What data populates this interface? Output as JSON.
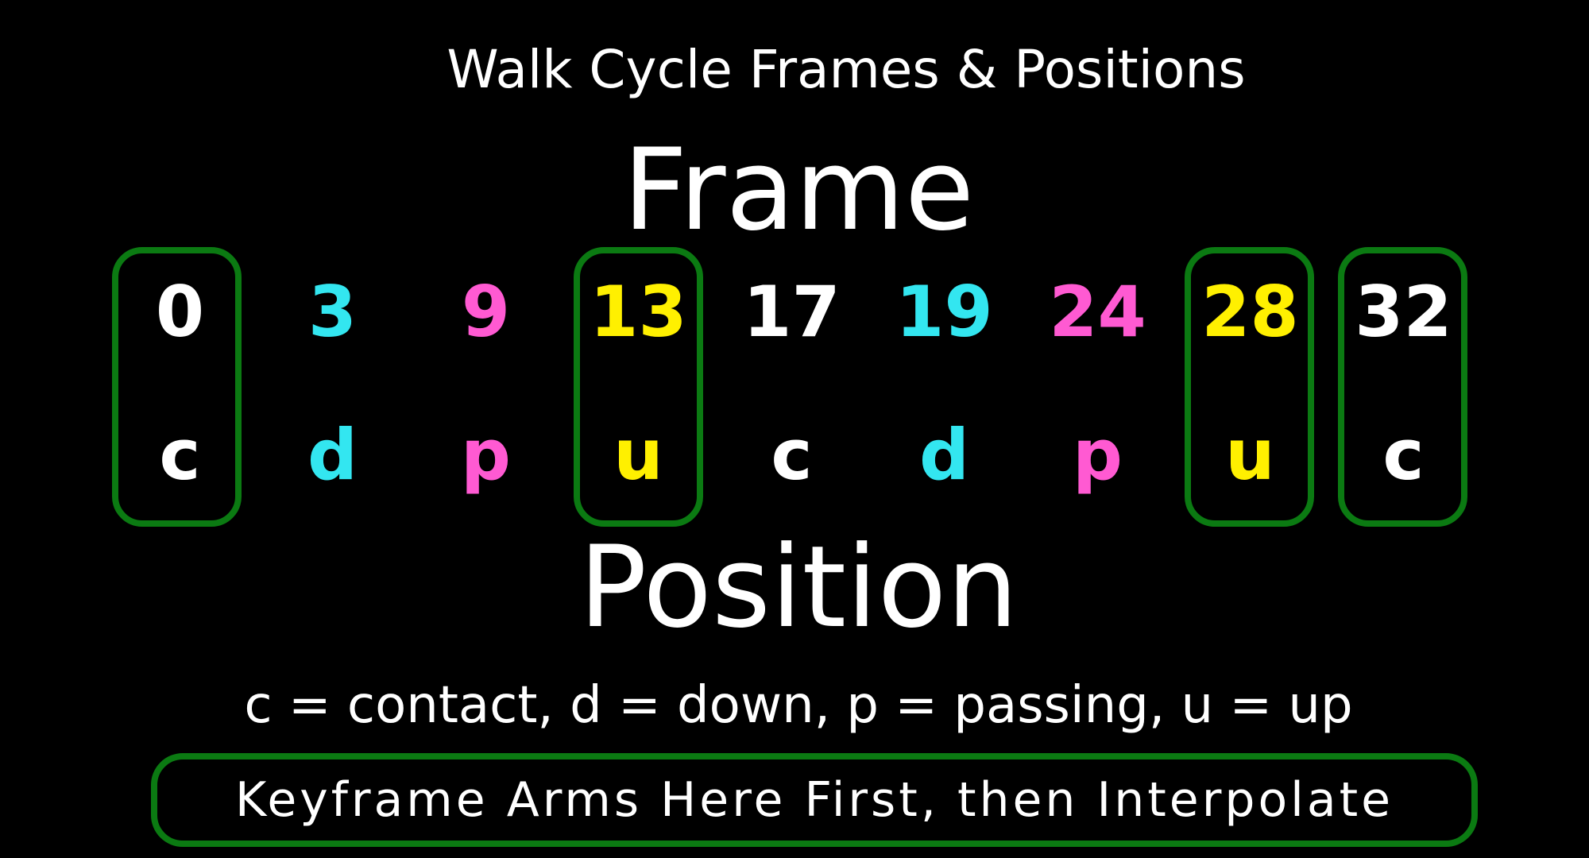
{
  "title": "Walk Cycle Frames & Positions",
  "frame_heading": "Frame",
  "position_heading": "Position",
  "legend": "c = contact, d = down, p = passing, u = up",
  "banner": "Keyframe Arms Here First, then Interpolate",
  "colors": {
    "white": "#ffffff",
    "cyan": "#33e6f0",
    "magenta": "#ff5ad2",
    "yellow": "#fff000",
    "box_green": "#0b7a12"
  },
  "columns": [
    {
      "frame": "0",
      "position": "c",
      "color": "#ffffff",
      "keyframe": true
    },
    {
      "frame": "3",
      "position": "d",
      "color": "#33e6f0",
      "keyframe": false
    },
    {
      "frame": "9",
      "position": "p",
      "color": "#ff5ad2",
      "keyframe": false
    },
    {
      "frame": "13",
      "position": "u",
      "color": "#fff000",
      "keyframe": true
    },
    {
      "frame": "17",
      "position": "c",
      "color": "#ffffff",
      "keyframe": false
    },
    {
      "frame": "19",
      "position": "d",
      "color": "#33e6f0",
      "keyframe": false
    },
    {
      "frame": "24",
      "position": "p",
      "color": "#ff5ad2",
      "keyframe": false
    },
    {
      "frame": "28",
      "position": "u",
      "color": "#fff000",
      "keyframe": true
    },
    {
      "frame": "32",
      "position": "c",
      "color": "#ffffff",
      "keyframe": true
    }
  ]
}
